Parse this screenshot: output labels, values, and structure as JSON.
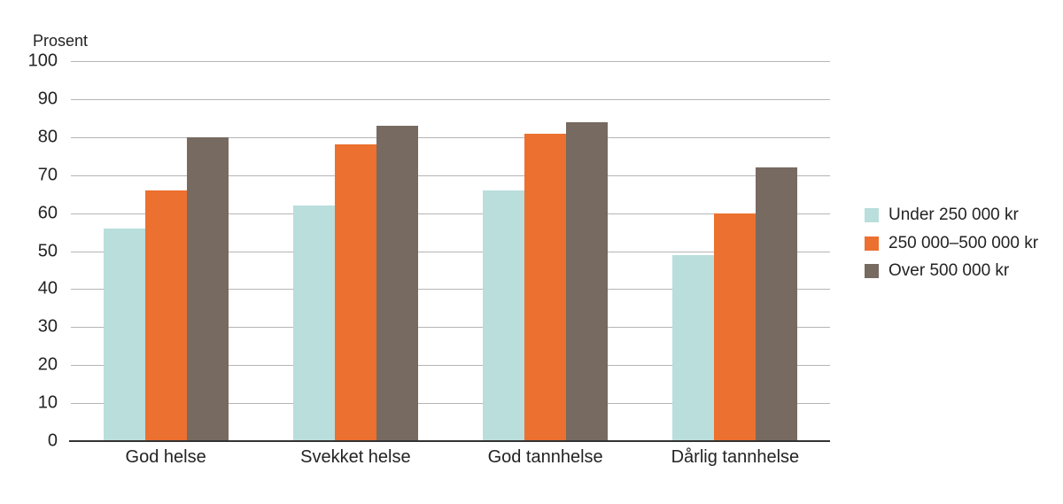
{
  "style": {
    "background": "#ffffff",
    "gridline_color": "#b5b5b5",
    "axis_line_color": "#333333",
    "text_color": "#232323"
  },
  "chart_data": {
    "type": "bar",
    "title": "",
    "ylabel": "Prosent",
    "xlabel": "",
    "categories": [
      "God helse",
      "Svekket helse",
      "God tannhelse",
      "Dårlig tannhelse"
    ],
    "series": [
      {
        "name": "Under 250 000 kr",
        "color": "#b9dedc",
        "values": [
          56,
          62,
          66,
          49
        ]
      },
      {
        "name": "250 000–500 000 kr",
        "color": "#ec702f",
        "values": [
          66,
          78,
          81,
          60
        ]
      },
      {
        "name": "Over 500 000 kr",
        "color": "#776a61",
        "values": [
          80,
          83,
          84,
          72
        ]
      }
    ],
    "ylim": [
      0,
      100
    ],
    "yticks": [
      0,
      10,
      20,
      30,
      40,
      50,
      60,
      70,
      80,
      90,
      100
    ],
    "grid": true,
    "legend_position": "right"
  }
}
